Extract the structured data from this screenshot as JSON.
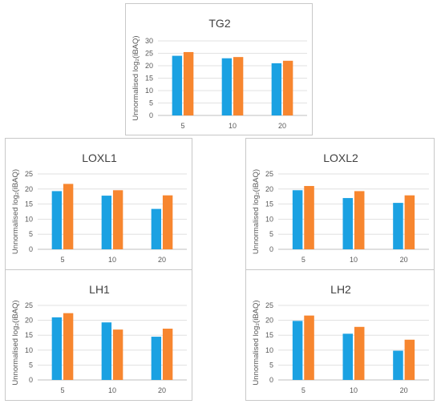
{
  "colors": {
    "series1": "#1BA1E2",
    "series2": "#F7862F",
    "grid": "#d9d9d9",
    "axis": "#bfbfbf"
  },
  "chart_data": [
    {
      "type": "bar",
      "title": "TG2",
      "ylabel": "Unnormalised log₂(iBAQ)",
      "categories": [
        "5",
        "10",
        "20"
      ],
      "ylim": [
        0,
        30
      ],
      "yticks": [
        0,
        5,
        10,
        15,
        20,
        25,
        30
      ],
      "series": [
        {
          "values": [
            24.0,
            23.0,
            21.0
          ]
        },
        {
          "values": [
            25.5,
            23.5,
            22.0
          ]
        }
      ]
    },
    {
      "type": "bar",
      "title": "LOXL1",
      "ylabel": "Unnormalised log₂(iBAQ)",
      "categories": [
        "5",
        "10",
        "20"
      ],
      "ylim": [
        0,
        25
      ],
      "yticks": [
        0,
        5,
        10,
        15,
        20,
        25
      ],
      "series": [
        {
          "values": [
            19.3,
            17.8,
            13.4
          ]
        },
        {
          "values": [
            21.7,
            19.6,
            17.9
          ]
        }
      ]
    },
    {
      "type": "bar",
      "title": "LOXL2",
      "ylabel": "Unnormalised log₂(iBAQ)",
      "categories": [
        "5",
        "10",
        "20"
      ],
      "ylim": [
        0,
        25
      ],
      "yticks": [
        0,
        5,
        10,
        15,
        20,
        25
      ],
      "series": [
        {
          "values": [
            19.6,
            17.0,
            15.4
          ]
        },
        {
          "values": [
            21.0,
            19.3,
            17.9
          ]
        }
      ]
    },
    {
      "type": "bar",
      "title": "LH1",
      "ylabel": "Unnormalised log₂(iBAQ)",
      "categories": [
        "5",
        "10",
        "20"
      ],
      "ylim": [
        0,
        25
      ],
      "yticks": [
        0,
        5,
        10,
        15,
        20,
        25
      ],
      "series": [
        {
          "values": [
            21.0,
            19.3,
            14.5
          ]
        },
        {
          "values": [
            22.4,
            16.9,
            17.2
          ]
        }
      ]
    },
    {
      "type": "bar",
      "title": "LH2",
      "ylabel": "Unnormalised log₂(iBAQ)",
      "categories": [
        "5",
        "10",
        "20"
      ],
      "ylim": [
        0,
        25
      ],
      "yticks": [
        0,
        5,
        10,
        15,
        20,
        25
      ],
      "series": [
        {
          "values": [
            19.8,
            15.5,
            9.8
          ]
        },
        {
          "values": [
            21.6,
            17.8,
            13.5
          ]
        }
      ]
    }
  ]
}
